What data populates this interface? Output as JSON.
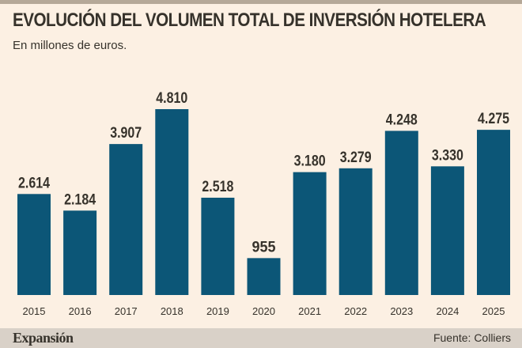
{
  "chart_data": {
    "type": "bar",
    "title": "EVOLUCIÓN DEL VOLUMEN TOTAL DE INVERSIÓN HOTELERA",
    "subtitle": "En millones de euros.",
    "xlabel": "",
    "ylabel": "",
    "ylim": [
      0,
      4810
    ],
    "grid": false,
    "categories": [
      "2015",
      "2016",
      "2017",
      "2018",
      "2019",
      "2020",
      "2021",
      "2022",
      "2023",
      "2024",
      "2025"
    ],
    "values": [
      2614,
      2184,
      3907,
      4810,
      2518,
      955,
      3180,
      3279,
      4248,
      3330,
      4275
    ],
    "value_labels": [
      "2.614",
      "2.184",
      "3.907",
      "4.810",
      "2.518",
      "955",
      "3.180",
      "3.279",
      "4.248",
      "3.330",
      "4.275"
    ],
    "bar_color": "#0c5677"
  },
  "footer": {
    "brand": "Expansión",
    "source": "Fuente: Colliers"
  }
}
